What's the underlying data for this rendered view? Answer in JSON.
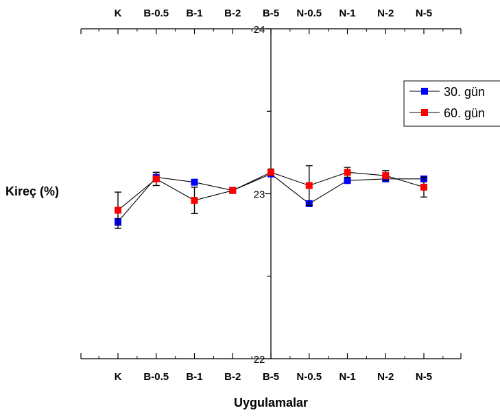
{
  "chart_data": {
    "type": "line",
    "categories": [
      "K",
      "B-0.5",
      "B-1",
      "B-2",
      "B-5",
      "N-0.5",
      "N-1",
      "N-2",
      "N-5"
    ],
    "xlabel": "Uygulamalar",
    "ylabel": "Kireç (%)",
    "ylim": [
      22,
      24
    ],
    "yticks": [
      "22",
      "23",
      "24"
    ],
    "grid": false,
    "legend_position": "right",
    "series": [
      {
        "name": "30. gün",
        "color": "#0000ff",
        "values": [
          22.83,
          23.1,
          23.07,
          23.02,
          23.12,
          22.94,
          23.08,
          23.09,
          23.09
        ],
        "errors": [
          0.02,
          0.0,
          0.0,
          0.0,
          0.0,
          0.01,
          0.0,
          0.0,
          0.0
        ]
      },
      {
        "name": "60. gün",
        "color": "#ff0000",
        "values": [
          22.9,
          23.09,
          22.96,
          23.02,
          23.13,
          23.05,
          23.13,
          23.11,
          23.04
        ],
        "errors": [
          0.11,
          0.04,
          0.08,
          0.0,
          0.02,
          0.12,
          0.03,
          0.03,
          0.06
        ]
      }
    ]
  }
}
